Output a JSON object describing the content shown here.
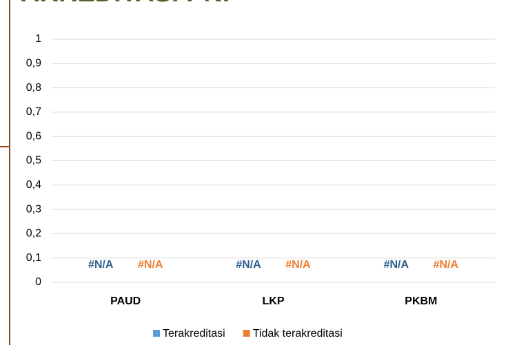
{
  "chart_data": {
    "type": "bar",
    "title": "AKREDITASI PNF",
    "categories": [
      "PAUD",
      "LKP",
      "PKBM"
    ],
    "series": [
      {
        "name": "Terakreditasi",
        "color": "#5b9bd5",
        "label_color": "#2f5f8f",
        "values": [
          null,
          null,
          null
        ],
        "value_labels": [
          "#N/A",
          "#N/A",
          "#N/A"
        ]
      },
      {
        "name": "Tidak terakreditasi",
        "color": "#ed7d31",
        "label_color": "#ed7d31",
        "values": [
          null,
          null,
          null
        ],
        "value_labels": [
          "#N/A",
          "#N/A",
          "#N/A"
        ]
      }
    ],
    "ylim": [
      0,
      1
    ],
    "yticks": [
      0,
      {
        "value": 0.1,
        "label": "0,1"
      },
      {
        "value": 0.2,
        "label": "0,2"
      },
      {
        "value": 0.3,
        "label": "0,3"
      },
      {
        "value": 0.4,
        "label": "0,4"
      },
      {
        "value": 0.5,
        "label": "0,5"
      },
      {
        "value": 0.6,
        "label": "0,6"
      },
      {
        "value": 0.7,
        "label": "0,7"
      },
      {
        "value": 0.8,
        "label": "0,8"
      },
      {
        "value": 0.9,
        "label": "0,9"
      },
      1
    ],
    "grid": true,
    "legend": "bottom"
  }
}
